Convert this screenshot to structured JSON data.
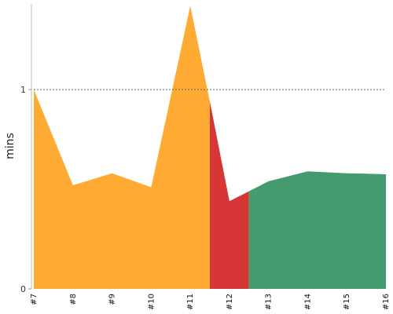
{
  "chart_data": {
    "type": "area",
    "ylabel": "mins",
    "x": [
      "#7",
      "#8",
      "#9",
      "#10",
      "#11",
      "#12",
      "#13",
      "#14",
      "#15",
      "#16"
    ],
    "ylim": [
      0,
      1.43
    ],
    "yticks": [
      0,
      1
    ],
    "reference_line": {
      "y": 1,
      "style": "dotted"
    },
    "segments": [
      {
        "color": "#FFAA33",
        "x": [
          7,
          8,
          9,
          10,
          11,
          11.5
        ],
        "y": [
          1.0,
          0.52,
          0.58,
          0.51,
          1.42,
          0.94
        ]
      },
      {
        "color": "#D63636",
        "x": [
          11.5,
          12,
          12.5
        ],
        "y": [
          0.94,
          0.44,
          0.49
        ]
      },
      {
        "color": "#449C6E",
        "x": [
          12.5,
          13,
          13.5,
          14,
          14.5,
          15,
          15.5,
          16
        ],
        "y": [
          0.49,
          0.54,
          0.565,
          0.59,
          0.585,
          0.58,
          0.578,
          0.575
        ]
      }
    ]
  }
}
